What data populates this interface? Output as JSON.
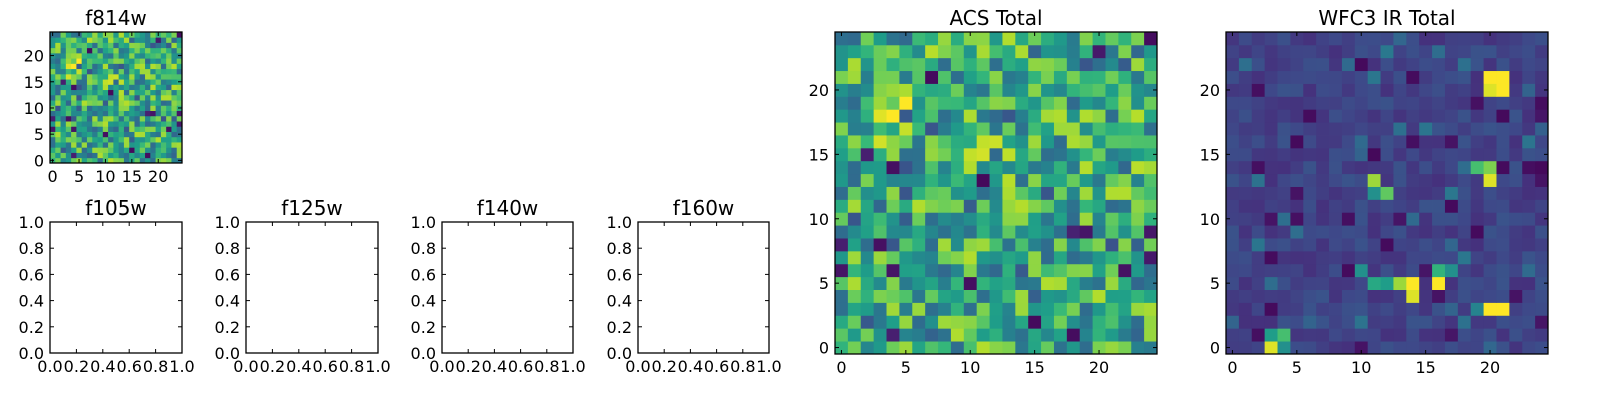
{
  "chart_data": [
    {
      "type": "heatmap",
      "title": "f814w",
      "xlabel": "",
      "ylabel": "",
      "xlim": [
        -0.5,
        24.5
      ],
      "ylim": [
        -0.5,
        24.5
      ],
      "xticks": [
        0,
        5,
        10,
        15,
        20
      ],
      "yticks": [
        0,
        5,
        10,
        15,
        20
      ],
      "xtick_labels": [
        "0",
        "5",
        "10",
        "15",
        "20"
      ],
      "ytick_labels": [
        "0",
        "5",
        "10",
        "15",
        "20"
      ],
      "grid": false,
      "colormap": "viridis",
      "data_source": "acs"
    },
    {
      "type": "empty",
      "title": "f105w",
      "xlim": [
        0,
        1
      ],
      "ylim": [
        0,
        1
      ],
      "xticks": [
        0,
        0.2,
        0.4,
        0.6,
        0.8,
        1
      ],
      "yticks": [
        0,
        0.2,
        0.4,
        0.6,
        0.8,
        1
      ],
      "xtick_labels": [
        "0.0",
        "0.2",
        "0.4",
        "0.6",
        "0.8",
        "1.0"
      ],
      "ytick_labels": [
        "0.0",
        "0.2",
        "0.4",
        "0.6",
        "0.8",
        "1.0"
      ],
      "grid": false
    },
    {
      "type": "empty",
      "title": "f125w",
      "xlim": [
        0,
        1
      ],
      "ylim": [
        0,
        1
      ],
      "xticks": [
        0,
        0.2,
        0.4,
        0.6,
        0.8,
        1
      ],
      "yticks": [
        0,
        0.2,
        0.4,
        0.6,
        0.8,
        1
      ],
      "xtick_labels": [
        "0.0",
        "0.2",
        "0.4",
        "0.6",
        "0.8",
        "1.0"
      ],
      "ytick_labels": [
        "0.0",
        "0.2",
        "0.4",
        "0.6",
        "0.8",
        "1.0"
      ],
      "grid": false
    },
    {
      "type": "empty",
      "title": "f140w",
      "xlim": [
        0,
        1
      ],
      "ylim": [
        0,
        1
      ],
      "xticks": [
        0,
        0.2,
        0.4,
        0.6,
        0.8,
        1
      ],
      "yticks": [
        0,
        0.2,
        0.4,
        0.6,
        0.8,
        1
      ],
      "xtick_labels": [
        "0.0",
        "0.2",
        "0.4",
        "0.6",
        "0.8",
        "1.0"
      ],
      "ytick_labels": [
        "0.0",
        "0.2",
        "0.4",
        "0.6",
        "0.8",
        "1.0"
      ],
      "grid": false
    },
    {
      "type": "empty",
      "title": "f160w",
      "xlim": [
        0,
        1
      ],
      "ylim": [
        0,
        1
      ],
      "xticks": [
        0,
        0.2,
        0.4,
        0.6,
        0.8,
        1
      ],
      "yticks": [
        0,
        0.2,
        0.4,
        0.6,
        0.8,
        1
      ],
      "xtick_labels": [
        "0.0",
        "0.2",
        "0.4",
        "0.6",
        "0.8",
        "1.0"
      ],
      "ytick_labels": [
        "0.0",
        "0.2",
        "0.4",
        "0.6",
        "0.8",
        "1.0"
      ],
      "grid": false
    },
    {
      "type": "heatmap",
      "title": "ACS Total",
      "xlim": [
        -0.5,
        24.5
      ],
      "ylim": [
        -0.5,
        24.5
      ],
      "xticks": [
        0,
        5,
        10,
        15,
        20
      ],
      "yticks": [
        0,
        5,
        10,
        15,
        20
      ],
      "xtick_labels": [
        "0",
        "5",
        "10",
        "15",
        "20"
      ],
      "ytick_labels": [
        "0",
        "5",
        "10",
        "15",
        "20"
      ],
      "grid": false,
      "colormap": "viridis",
      "data_source": "acs"
    },
    {
      "type": "heatmap",
      "title": "WFC3 IR Total",
      "xlim": [
        -0.5,
        24.5
      ],
      "ylim": [
        -0.5,
        24.5
      ],
      "xticks": [
        0,
        5,
        10,
        15,
        20
      ],
      "yticks": [
        0,
        5,
        10,
        15,
        20
      ],
      "xtick_labels": [
        "0",
        "5",
        "10",
        "15",
        "20"
      ],
      "ytick_labels": [
        "0",
        "5",
        "10",
        "15",
        "20"
      ],
      "grid": false,
      "colormap": "viridis",
      "data_source": "wfc3",
      "bright_cells": [
        {
          "x": 20,
          "y": 21,
          "value": 1.0
        },
        {
          "x": 21,
          "y": 21,
          "value": 1.0
        },
        {
          "x": 20,
          "y": 20,
          "value": 0.95
        },
        {
          "x": 21,
          "y": 20,
          "value": 1.0
        },
        {
          "x": 19,
          "y": 14,
          "value": 0.7
        },
        {
          "x": 20,
          "y": 14,
          "value": 0.8
        },
        {
          "x": 20,
          "y": 13,
          "value": 0.95
        },
        {
          "x": 11,
          "y": 13,
          "value": 0.85
        },
        {
          "x": 11,
          "y": 12,
          "value": 0.5
        },
        {
          "x": 12,
          "y": 12,
          "value": 0.75
        },
        {
          "x": 10,
          "y": 6,
          "value": 0.5
        },
        {
          "x": 11,
          "y": 5,
          "value": 0.6
        },
        {
          "x": 12,
          "y": 5,
          "value": 0.55
        },
        {
          "x": 13,
          "y": 5,
          "value": 0.85
        },
        {
          "x": 14,
          "y": 5,
          "value": 1.0
        },
        {
          "x": 14,
          "y": 4,
          "value": 0.95
        },
        {
          "x": 16,
          "y": 6,
          "value": 0.65
        },
        {
          "x": 17,
          "y": 6,
          "value": 0.5
        },
        {
          "x": 16,
          "y": 5,
          "value": 1.0
        },
        {
          "x": 20,
          "y": 3,
          "value": 1.0
        },
        {
          "x": 21,
          "y": 3,
          "value": 1.0
        },
        {
          "x": 19,
          "y": 3,
          "value": 0.45
        },
        {
          "x": 22,
          "y": 4,
          "value": 0.05
        },
        {
          "x": 3,
          "y": 1,
          "value": 0.55
        },
        {
          "x": 4,
          "y": 1,
          "value": 0.7
        },
        {
          "x": 3,
          "y": 0,
          "value": 0.95
        },
        {
          "x": 4,
          "y": 0,
          "value": 0.5
        }
      ]
    }
  ]
}
